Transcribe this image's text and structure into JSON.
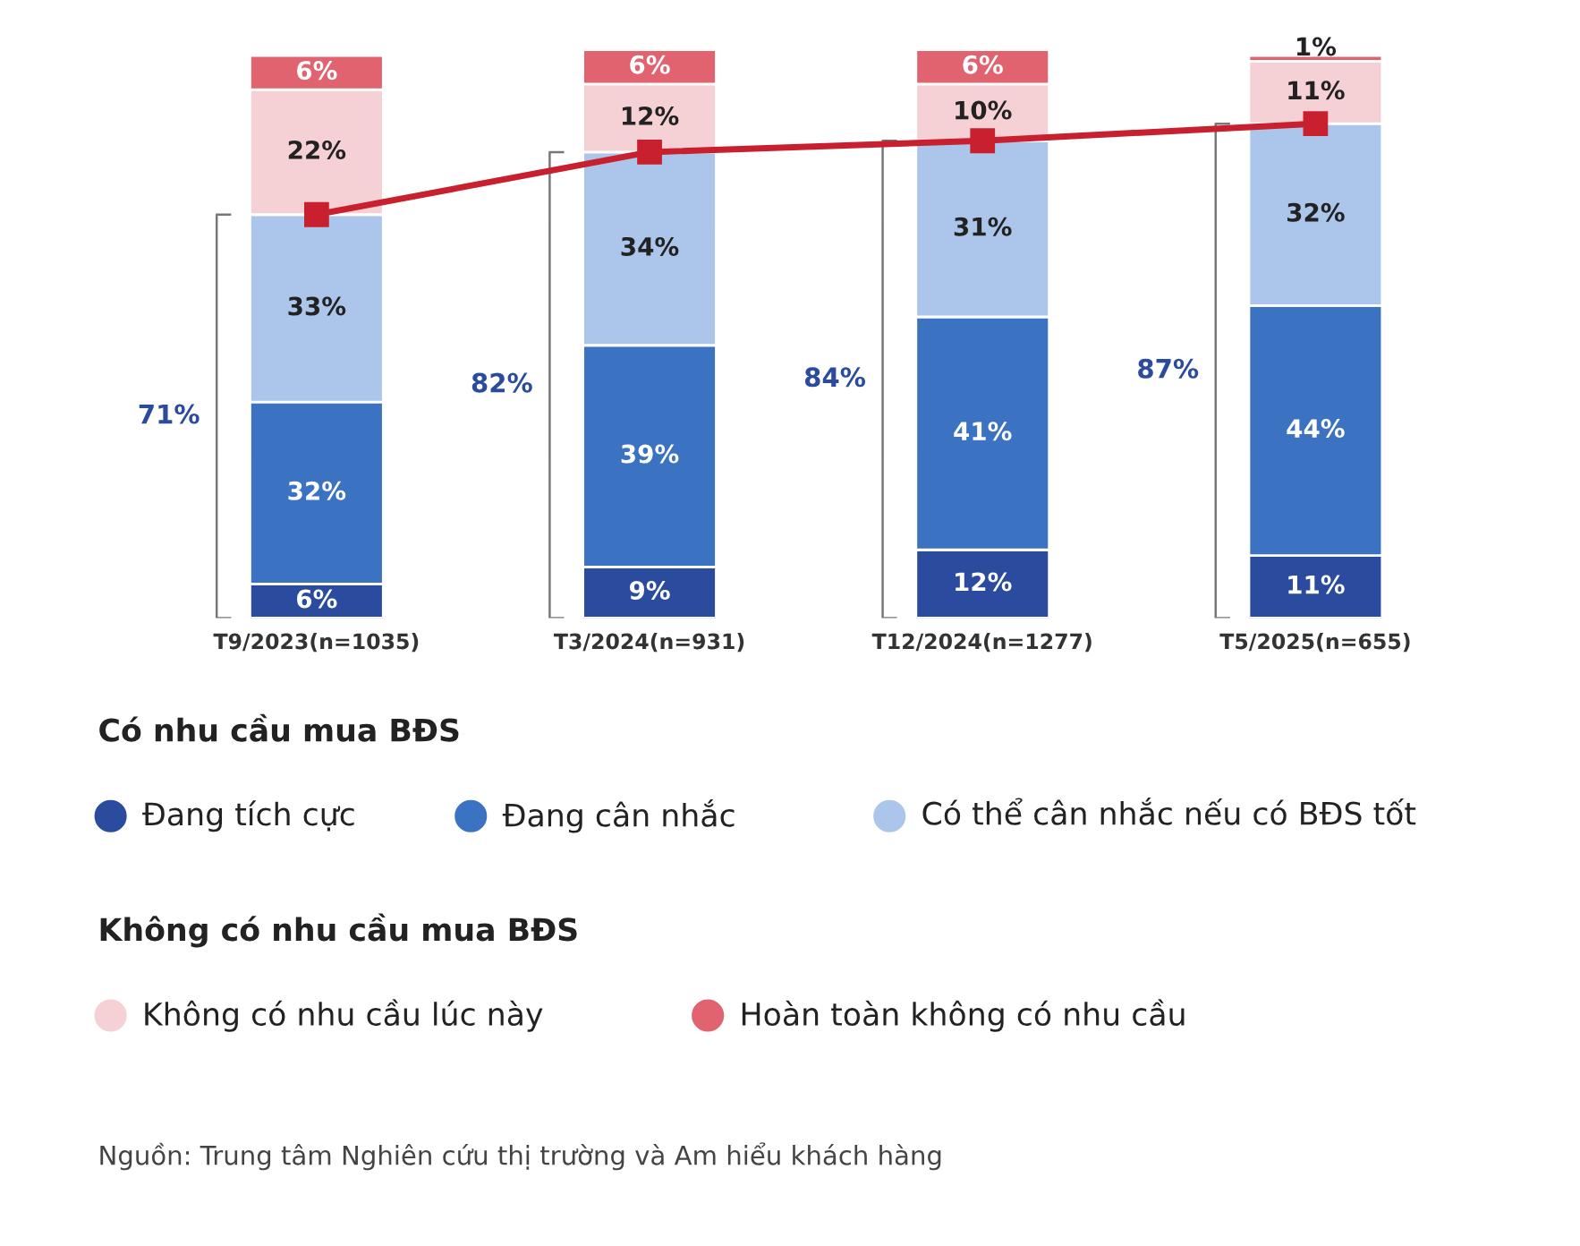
{
  "chart_data": {
    "type": "bar",
    "stacked": true,
    "categories": [
      "T9/2023(n=1035)",
      "T3/2024(n=931)",
      "T12/2024(n=1277)",
      "T5/2025(n=655)"
    ],
    "series": [
      {
        "name": "Đang tích cực",
        "color": "#2b4c9e",
        "values": [
          6,
          9,
          12,
          11
        ],
        "value_labels": [
          "6%",
          "9%",
          "12%",
          "11%"
        ]
      },
      {
        "name": "Đang cân nhắc",
        "color": "#3b72c2",
        "values": [
          32,
          39,
          41,
          44
        ],
        "value_labels": [
          "32%",
          "39%",
          "41%",
          "44%"
        ]
      },
      {
        "name": "Có thể cân nhắc nếu có BĐS tốt",
        "color": "#abc6ea",
        "values": [
          33,
          34,
          31,
          32
        ],
        "value_labels": [
          "33%",
          "34%",
          "31%",
          "32%"
        ]
      },
      {
        "name": "Không có nhu cầu lúc này",
        "color": "#f5d0d4",
        "values": [
          22,
          12,
          10,
          11
        ],
        "value_labels": [
          "22%",
          "12%",
          "10%",
          "11%"
        ]
      },
      {
        "name": "Hoàn toàn không có nhu cầu",
        "color": "#e0636f",
        "values": [
          6,
          6,
          6,
          1
        ],
        "value_labels": [
          "6%",
          "6%",
          "6%",
          "1%"
        ]
      },
      {
        "type": "line",
        "color": "#c8202e",
        "marker": "square",
        "values": [
          71,
          82,
          84,
          87
        ]
      }
    ],
    "legend": "bottom",
    "annotations": [
      "Có nhu cầu mua BĐS",
      "Không có nhu cầu mua BĐS",
      "Nguồn: Trung tâm Nghiên cứu thị trường và Am hiểu khách hàng",
      "71%",
      "82%",
      "84%",
      "87%"
    ]
  }
}
